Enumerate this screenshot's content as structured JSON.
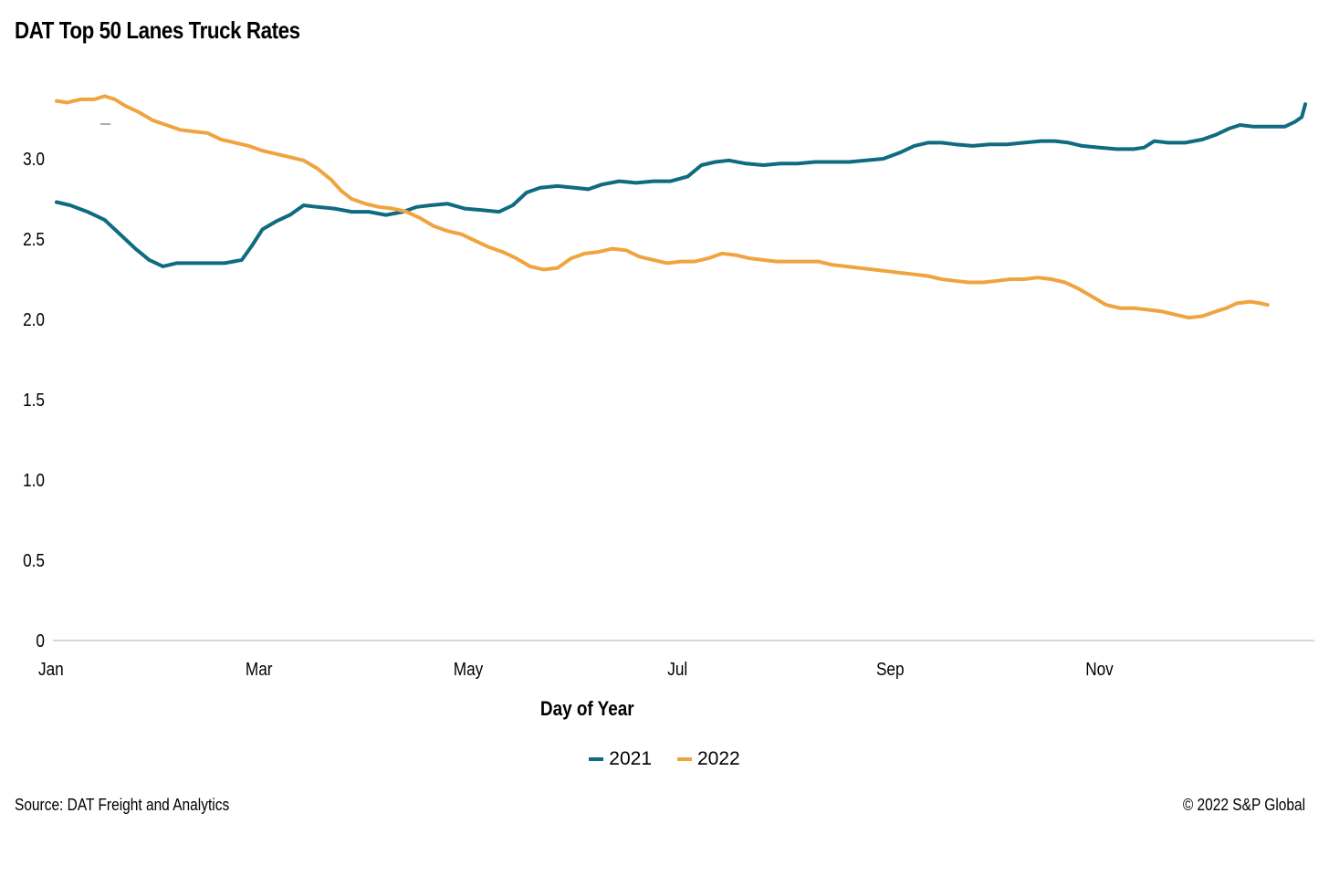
{
  "chart_data": {
    "type": "line",
    "title": "DAT Top 50 Lanes Truck Rates",
    "xlabel": "Day of Year",
    "ylabel": "",
    "ylim": [
      0,
      3.5
    ],
    "y_ticks": [
      "0",
      "0.5",
      "1.0",
      "1.5",
      "2.0",
      "2.5",
      "3.0"
    ],
    "y_tick_values": [
      0,
      0.5,
      1.0,
      1.5,
      2.0,
      2.5,
      3.0
    ],
    "x_ticks": [
      "Jan",
      "Mar",
      "May",
      "Jul",
      "Sep",
      "Nov"
    ],
    "x_tick_days": [
      1,
      60,
      121,
      182,
      244,
      305
    ],
    "xlim": [
      1,
      365
    ],
    "grid": false,
    "legend_position": "bottom",
    "series": [
      {
        "name": "2021",
        "color": "#0f6b80",
        "points": [
          [
            1,
            2.73
          ],
          [
            5,
            2.71
          ],
          [
            10,
            2.67
          ],
          [
            15,
            2.62
          ],
          [
            20,
            2.52
          ],
          [
            24,
            2.44
          ],
          [
            28,
            2.37
          ],
          [
            32,
            2.33
          ],
          [
            36,
            2.35
          ],
          [
            40,
            2.35
          ],
          [
            45,
            2.35
          ],
          [
            50,
            2.35
          ],
          [
            55,
            2.37
          ],
          [
            58,
            2.46
          ],
          [
            61,
            2.56
          ],
          [
            65,
            2.61
          ],
          [
            69,
            2.65
          ],
          [
            73,
            2.71
          ],
          [
            77,
            2.7
          ],
          [
            82,
            2.69
          ],
          [
            87,
            2.67
          ],
          [
            92,
            2.67
          ],
          [
            97,
            2.65
          ],
          [
            102,
            2.67
          ],
          [
            106,
            2.7
          ],
          [
            110,
            2.71
          ],
          [
            115,
            2.72
          ],
          [
            120,
            2.69
          ],
          [
            125,
            2.68
          ],
          [
            130,
            2.67
          ],
          [
            134,
            2.71
          ],
          [
            138,
            2.79
          ],
          [
            142,
            2.82
          ],
          [
            147,
            2.83
          ],
          [
            152,
            2.82
          ],
          [
            156,
            2.81
          ],
          [
            160,
            2.84
          ],
          [
            165,
            2.86
          ],
          [
            170,
            2.85
          ],
          [
            175,
            2.86
          ],
          [
            180,
            2.86
          ],
          [
            185,
            2.89
          ],
          [
            189,
            2.96
          ],
          [
            193,
            2.98
          ],
          [
            197,
            2.99
          ],
          [
            202,
            2.97
          ],
          [
            207,
            2.96
          ],
          [
            212,
            2.97
          ],
          [
            217,
            2.97
          ],
          [
            222,
            2.98
          ],
          [
            227,
            2.98
          ],
          [
            232,
            2.98
          ],
          [
            237,
            2.99
          ],
          [
            242,
            3.0
          ],
          [
            247,
            3.04
          ],
          [
            251,
            3.08
          ],
          [
            255,
            3.1
          ],
          [
            259,
            3.1
          ],
          [
            263,
            3.09
          ],
          [
            268,
            3.08
          ],
          [
            273,
            3.09
          ],
          [
            278,
            3.09
          ],
          [
            283,
            3.1
          ],
          [
            288,
            3.11
          ],
          [
            292,
            3.11
          ],
          [
            296,
            3.1
          ],
          [
            300,
            3.08
          ],
          [
            305,
            3.07
          ],
          [
            310,
            3.06
          ],
          [
            315,
            3.06
          ],
          [
            318,
            3.07
          ],
          [
            321,
            3.11
          ],
          [
            325,
            3.1
          ],
          [
            330,
            3.1
          ],
          [
            335,
            3.12
          ],
          [
            339,
            3.15
          ],
          [
            343,
            3.19
          ],
          [
            346,
            3.21
          ],
          [
            350,
            3.2
          ],
          [
            355,
            3.2
          ],
          [
            359,
            3.2
          ],
          [
            362,
            3.23
          ],
          [
            364,
            3.26
          ],
          [
            365,
            3.34
          ]
        ]
      },
      {
        "name": "2022",
        "color": "#efa440",
        "points": [
          [
            1,
            3.36
          ],
          [
            4,
            3.35
          ],
          [
            8,
            3.37
          ],
          [
            12,
            3.37
          ],
          [
            15,
            3.39
          ],
          [
            18,
            3.37
          ],
          [
            21,
            3.33
          ],
          [
            25,
            3.29
          ],
          [
            29,
            3.24
          ],
          [
            33,
            3.21
          ],
          [
            37,
            3.18
          ],
          [
            41,
            3.17
          ],
          [
            45,
            3.16
          ],
          [
            49,
            3.12
          ],
          [
            53,
            3.1
          ],
          [
            57,
            3.08
          ],
          [
            61,
            3.05
          ],
          [
            65,
            3.03
          ],
          [
            69,
            3.01
          ],
          [
            73,
            2.99
          ],
          [
            77,
            2.94
          ],
          [
            81,
            2.87
          ],
          [
            84,
            2.8
          ],
          [
            87,
            2.75
          ],
          [
            91,
            2.72
          ],
          [
            95,
            2.7
          ],
          [
            99,
            2.69
          ],
          [
            103,
            2.67
          ],
          [
            107,
            2.63
          ],
          [
            111,
            2.58
          ],
          [
            115,
            2.55
          ],
          [
            119,
            2.53
          ],
          [
            123,
            2.49
          ],
          [
            127,
            2.45
          ],
          [
            131,
            2.42
          ],
          [
            135,
            2.38
          ],
          [
            139,
            2.33
          ],
          [
            143,
            2.31
          ],
          [
            147,
            2.32
          ],
          [
            151,
            2.38
          ],
          [
            155,
            2.41
          ],
          [
            159,
            2.42
          ],
          [
            163,
            2.44
          ],
          [
            167,
            2.43
          ],
          [
            171,
            2.39
          ],
          [
            175,
            2.37
          ],
          [
            179,
            2.35
          ],
          [
            183,
            2.36
          ],
          [
            187,
            2.36
          ],
          [
            191,
            2.38
          ],
          [
            195,
            2.41
          ],
          [
            199,
            2.4
          ],
          [
            203,
            2.38
          ],
          [
            207,
            2.37
          ],
          [
            211,
            2.36
          ],
          [
            215,
            2.36
          ],
          [
            219,
            2.36
          ],
          [
            223,
            2.36
          ],
          [
            227,
            2.34
          ],
          [
            231,
            2.33
          ],
          [
            235,
            2.32
          ],
          [
            239,
            2.31
          ],
          [
            243,
            2.3
          ],
          [
            247,
            2.29
          ],
          [
            251,
            2.28
          ],
          [
            255,
            2.27
          ],
          [
            259,
            2.25
          ],
          [
            263,
            2.24
          ],
          [
            267,
            2.23
          ],
          [
            271,
            2.23
          ],
          [
            275,
            2.24
          ],
          [
            279,
            2.25
          ],
          [
            283,
            2.25
          ],
          [
            287,
            2.26
          ],
          [
            291,
            2.25
          ],
          [
            295,
            2.23
          ],
          [
            299,
            2.19
          ],
          [
            303,
            2.14
          ],
          [
            307,
            2.09
          ],
          [
            311,
            2.07
          ],
          [
            315,
            2.07
          ],
          [
            319,
            2.06
          ],
          [
            323,
            2.05
          ],
          [
            327,
            2.03
          ],
          [
            331,
            2.01
          ],
          [
            335,
            2.02
          ],
          [
            339,
            2.05
          ],
          [
            342,
            2.07
          ],
          [
            345,
            2.1
          ],
          [
            349,
            2.11
          ],
          [
            352,
            2.1
          ],
          [
            354,
            2.09
          ]
        ]
      }
    ],
    "source": "Source: DAT Freight and Analytics",
    "copyright": "© 2022 S&P Global"
  }
}
